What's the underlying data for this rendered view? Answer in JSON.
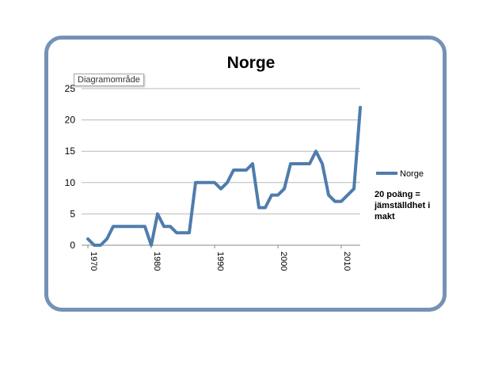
{
  "chart_data": {
    "type": "line",
    "title": "Norge",
    "tooltip": "Diagramområde",
    "xlabel": "",
    "ylabel": "",
    "ylim": [
      0,
      25
    ],
    "yticks": [
      0,
      5,
      10,
      15,
      20,
      25
    ],
    "xlim": [
      1969,
      2013
    ],
    "xticks": [
      1970,
      1980,
      1990,
      2000,
      2010
    ],
    "grid": true,
    "legend_position": "right",
    "annotation": "20 poäng = jämställdhet i makt",
    "line_color": "#4f7cad",
    "series": [
      {
        "name": "Norge",
        "x": [
          1970,
          1971,
          1972,
          1973,
          1974,
          1975,
          1976,
          1977,
          1978,
          1979,
          1980,
          1981,
          1982,
          1983,
          1984,
          1985,
          1986,
          1987,
          1988,
          1989,
          1990,
          1991,
          1992,
          1993,
          1994,
          1995,
          1996,
          1997,
          1998,
          1999,
          2000,
          2001,
          2002,
          2003,
          2004,
          2005,
          2006,
          2007,
          2008,
          2009,
          2010,
          2011,
          2012,
          2013
        ],
        "y": [
          1,
          0,
          0,
          1,
          3,
          3,
          3,
          3,
          3,
          3,
          0,
          5,
          3,
          3,
          2,
          2,
          2,
          10,
          10,
          10,
          10,
          9,
          10,
          12,
          12,
          12,
          13,
          6,
          6,
          8,
          8,
          9,
          13,
          13,
          13,
          13,
          15,
          13,
          8,
          7,
          7,
          8,
          9,
          22
        ]
      }
    ]
  }
}
